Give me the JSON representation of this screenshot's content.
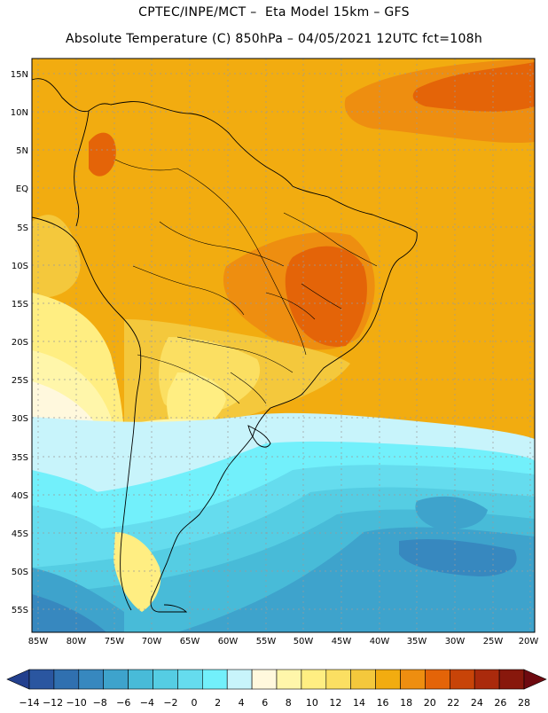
{
  "header": {
    "line1": "CPTEC/INPE/MCT –  Eta Model 15km – GFS",
    "line2": "Absolute Temperature (C) 850hPa – 04/05/2021 12UTC fct=108h"
  },
  "map": {
    "lat_labels": [
      "15N",
      "10N",
      "5N",
      "EQ",
      "5S",
      "10S",
      "15S",
      "20S",
      "25S",
      "30S",
      "35S",
      "40S",
      "45S",
      "50S",
      "55S"
    ],
    "lon_labels": [
      "85W",
      "80W",
      "75W",
      "70W",
      "65W",
      "60W",
      "55W",
      "50W",
      "45W",
      "40W",
      "35W",
      "30W",
      "25W",
      "20W"
    ],
    "gridlines": true,
    "region": "South America"
  },
  "colorbar": {
    "ticks": [
      "−14",
      "−12",
      "−10",
      "−8",
      "−6",
      "−4",
      "−2",
      "0",
      "2",
      "4",
      "6",
      "8",
      "10",
      "12",
      "14",
      "16",
      "18",
      "20",
      "22",
      "24",
      "26",
      "28"
    ],
    "colors": [
      "#23408e",
      "#2a56a0",
      "#3070b0",
      "#3788bf",
      "#3ea3cc",
      "#48bbd8",
      "#55cde3",
      "#65dcee",
      "#72f0fb",
      "#c8f4fb",
      "#fff8dd",
      "#fff6aa",
      "#ffee82",
      "#fbdf62",
      "#f4c83c",
      "#f2ac10",
      "#ee8e10",
      "#e46408",
      "#c84408",
      "#aa2a0c",
      "#88180c",
      "#6e0a10"
    ]
  },
  "chart_data": {
    "type": "heatmap",
    "variable": "Absolute Temperature (C) 850hPa",
    "model": "Eta Model 15km – GFS",
    "valid": "04/05/2021 12UTC fct=108h",
    "colorbar_range": [
      -14,
      28
    ],
    "colorbar_step": 2
  }
}
